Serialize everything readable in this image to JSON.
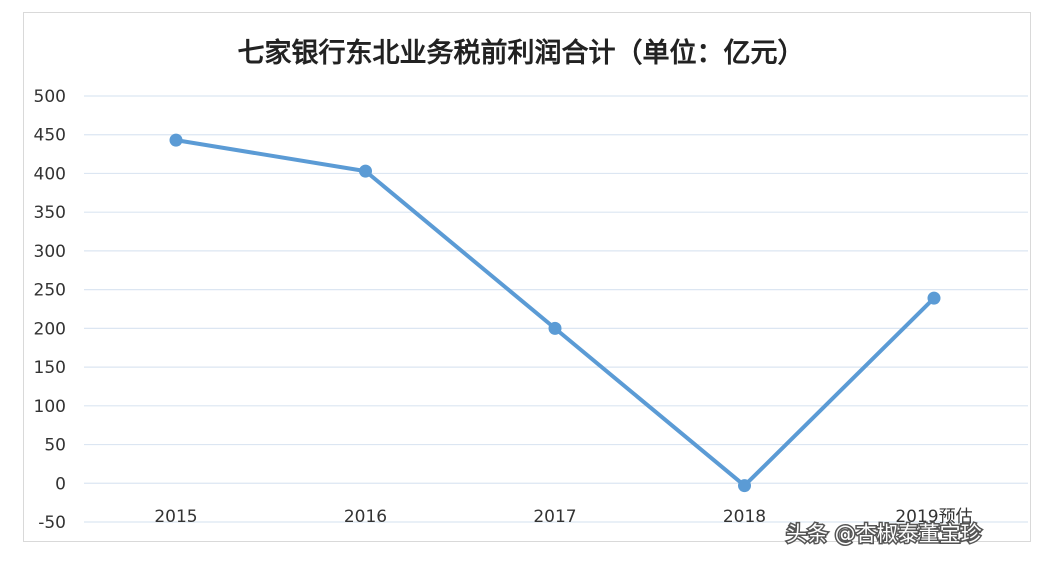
{
  "chart_data": {
    "type": "line",
    "title": "七家银行东北业务税前利润合计（单位：亿元）",
    "categories": [
      "2015",
      "2016",
      "2017",
      "2018",
      "2019预估"
    ],
    "series": [
      {
        "values": [
          443,
          403,
          200,
          -3,
          239
        ]
      }
    ],
    "ylim": [
      -50,
      500
    ],
    "yticks": [
      "500",
      "450",
      "400",
      "350",
      "300",
      "250",
      "200",
      "150",
      "100",
      "50",
      "0",
      "-50"
    ],
    "grid": true,
    "colors": {
      "line": "#5b9bd5",
      "grid": "#dce6f2"
    }
  },
  "watermark": "头条 @杏椒泰董宝珍"
}
